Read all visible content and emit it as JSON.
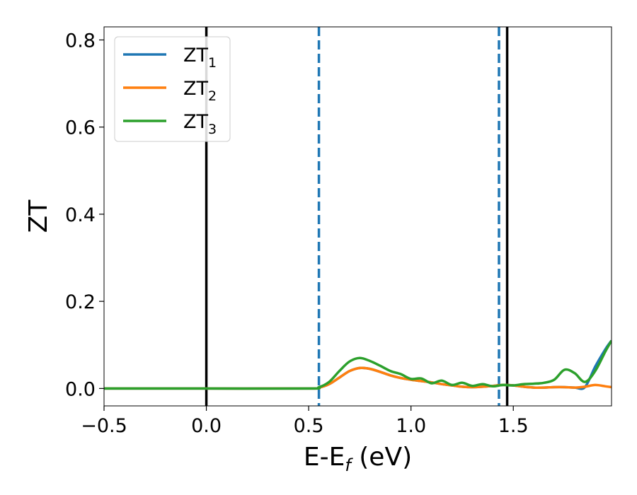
{
  "chart_data": {
    "type": "line",
    "xlabel": "E-E",
    "xlabel_sub": "f",
    "xlabel_unit": " (eV)",
    "ylabel": "ZT",
    "xlim": [
      -0.5,
      1.98
    ],
    "ylim": [
      -0.04,
      0.83
    ],
    "xticks": [
      -0.5,
      0.0,
      0.5,
      1.0,
      1.5
    ],
    "xtick_labels": [
      "−0.5",
      "0.0",
      "0.5",
      "1.0",
      "1.5"
    ],
    "yticks": [
      0.0,
      0.2,
      0.4,
      0.6,
      0.8
    ],
    "ytick_labels": [
      "0.0",
      "0.2",
      "0.4",
      "0.6",
      "0.8"
    ],
    "grid": false,
    "legend_position": "top-left",
    "vertical_lines": [
      {
        "x": 0.0,
        "style": "solid",
        "color": "#000000"
      },
      {
        "x": 1.47,
        "style": "solid",
        "color": "#000000"
      },
      {
        "x": 0.55,
        "style": "dashed",
        "color": "#1f77b4"
      },
      {
        "x": 1.43,
        "style": "dashed",
        "color": "#1f77b4"
      }
    ],
    "series": [
      {
        "name": "ZT",
        "sub": "1",
        "color": "#1f77b4",
        "x": [
          -0.5,
          0.0,
          0.5,
          0.55,
          0.6,
          0.65,
          0.7,
          0.75,
          0.8,
          0.85,
          0.9,
          0.95,
          1.0,
          1.05,
          1.1,
          1.15,
          1.2,
          1.25,
          1.3,
          1.35,
          1.4,
          1.45,
          1.5,
          1.55,
          1.6,
          1.65,
          1.7,
          1.75,
          1.8,
          1.85,
          1.9,
          1.95,
          1.98
        ],
        "y": [
          0.0,
          0.0,
          0.0,
          0.002,
          0.01,
          0.025,
          0.04,
          0.047,
          0.045,
          0.038,
          0.03,
          0.024,
          0.02,
          0.017,
          0.014,
          0.01,
          0.007,
          0.004,
          0.003,
          0.004,
          0.006,
          0.008,
          0.007,
          0.004,
          0.002,
          0.002,
          0.003,
          0.003,
          0.002,
          0.003,
          0.05,
          0.09,
          0.11
        ]
      },
      {
        "name": "ZT",
        "sub": "2",
        "color": "#ff7f0e",
        "x": [
          -0.5,
          0.0,
          0.5,
          0.55,
          0.6,
          0.65,
          0.7,
          0.75,
          0.8,
          0.85,
          0.9,
          0.95,
          1.0,
          1.05,
          1.1,
          1.15,
          1.2,
          1.25,
          1.3,
          1.35,
          1.4,
          1.45,
          1.5,
          1.55,
          1.6,
          1.65,
          1.7,
          1.75,
          1.8,
          1.85,
          1.9,
          1.95,
          1.98
        ],
        "y": [
          0.0,
          0.0,
          0.0,
          0.002,
          0.01,
          0.025,
          0.04,
          0.047,
          0.045,
          0.038,
          0.03,
          0.024,
          0.02,
          0.017,
          0.014,
          0.01,
          0.007,
          0.004,
          0.003,
          0.004,
          0.006,
          0.008,
          0.007,
          0.004,
          0.002,
          0.002,
          0.003,
          0.003,
          0.002,
          0.004,
          0.008,
          0.005,
          0.003
        ]
      },
      {
        "name": "ZT",
        "sub": "3",
        "color": "#2ca02c",
        "x": [
          -0.5,
          0.0,
          0.5,
          0.55,
          0.6,
          0.65,
          0.7,
          0.75,
          0.8,
          0.85,
          0.9,
          0.95,
          1.0,
          1.05,
          1.1,
          1.15,
          1.2,
          1.25,
          1.3,
          1.35,
          1.4,
          1.45,
          1.5,
          1.55,
          1.6,
          1.65,
          1.7,
          1.75,
          1.8,
          1.85,
          1.9,
          1.95,
          1.98
        ],
        "y": [
          0.0,
          0.0,
          0.0,
          0.003,
          0.015,
          0.04,
          0.062,
          0.07,
          0.063,
          0.052,
          0.04,
          0.033,
          0.022,
          0.023,
          0.012,
          0.018,
          0.008,
          0.013,
          0.006,
          0.01,
          0.005,
          0.008,
          0.007,
          0.01,
          0.011,
          0.013,
          0.02,
          0.043,
          0.035,
          0.015,
          0.04,
          0.085,
          0.11
        ]
      }
    ]
  }
}
